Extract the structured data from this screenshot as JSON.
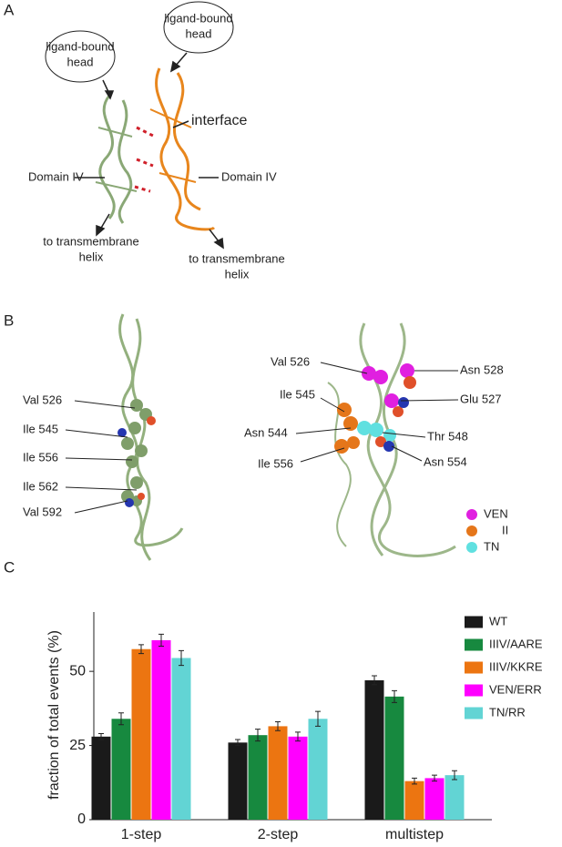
{
  "panels": {
    "a": {
      "letter": "A",
      "head_left": [
        "ligand-bound",
        "head"
      ],
      "head_right": [
        "ligand-bound",
        "head"
      ],
      "interface": "interface",
      "domain_left": "Domain IV",
      "domain_right": "Domain IV",
      "tm_left": [
        "to transmembrane",
        "helix"
      ],
      "tm_right": [
        "to transmembrane",
        "helix"
      ]
    },
    "b": {
      "letter": "B",
      "left_labels": [
        "Val 526",
        "Ile 545",
        "Ile 556",
        "Ile 562",
        "Val 592"
      ],
      "right_labels": [
        "Val 526",
        "Asn 528",
        "Ile 545",
        "Glu 527",
        "Asn 544",
        "Thr 548",
        "Ile 556",
        "Asn 554"
      ],
      "legend": [
        "VEN",
        "II",
        "TN"
      ]
    },
    "c": {
      "letter": "C"
    }
  },
  "chart_data": {
    "type": "bar",
    "y_label": "fraction of total events (%)",
    "categories": [
      "1-step",
      "2-step",
      "multistep"
    ],
    "series": [
      {
        "name": "WT",
        "color": "#1a1a1a",
        "values": [
          28,
          26,
          47
        ],
        "errors": [
          1,
          1,
          1.5
        ]
      },
      {
        "name": "IIIV/AARE",
        "color": "#17893f",
        "values": [
          34,
          28.5,
          41.5
        ],
        "errors": [
          2,
          2,
          2
        ]
      },
      {
        "name": "IIIV/KKRE",
        "color": "#ec7511",
        "values": [
          57.5,
          31.5,
          13
        ],
        "errors": [
          1.5,
          1.5,
          1
        ]
      },
      {
        "name": "VEN/ERR",
        "color": "#ff00ff",
        "values": [
          60.5,
          28,
          14
        ],
        "errors": [
          2,
          1.5,
          1
        ]
      },
      {
        "name": "TN/RR",
        "color": "#62d4d4",
        "values": [
          54.5,
          34,
          15
        ],
        "errors": [
          2.5,
          2.5,
          1.5
        ]
      }
    ],
    "ylim": [
      0,
      70
    ],
    "yticks": [
      0,
      25,
      50
    ],
    "legend": "top-right"
  }
}
